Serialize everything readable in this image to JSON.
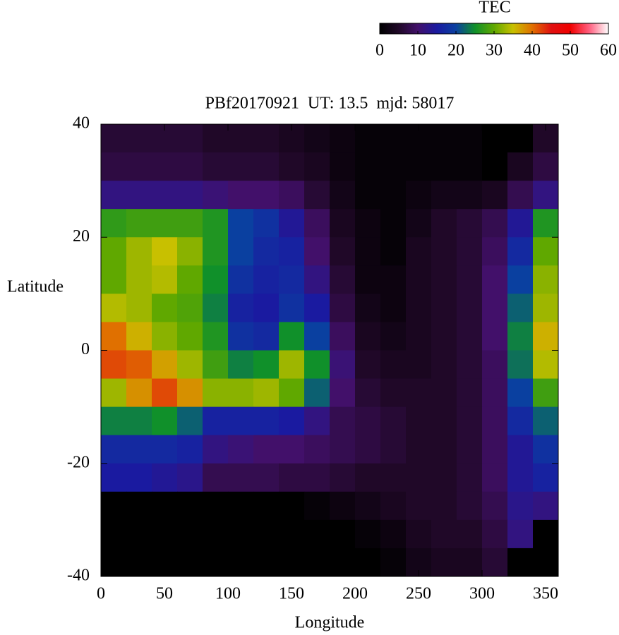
{
  "chart_data": {
    "type": "heatmap",
    "title": "PBf20170921  UT: 13.5  mjd: 58017",
    "xlabel": "Longitude",
    "ylabel": "Latitude",
    "colorbar_label": "TEC",
    "x": [
      10,
      30,
      50,
      70,
      90,
      110,
      130,
      150,
      170,
      190,
      210,
      230,
      250,
      270,
      290,
      310,
      330,
      350
    ],
    "y": [
      37.5,
      32.5,
      27.5,
      22.5,
      17.5,
      12.5,
      7.5,
      2.5,
      -2.5,
      -7.5,
      -12.5,
      -17.5,
      -22.5,
      -27.5,
      -32.5,
      -37.5
    ],
    "z": [
      [
        6,
        6,
        6,
        6,
        5,
        5,
        5,
        4,
        3,
        2,
        1,
        1,
        1,
        1,
        1,
        0,
        0,
        5
      ],
      [
        7,
        7,
        7,
        7,
        6,
        6,
        6,
        5,
        4,
        2,
        1,
        1,
        1,
        1,
        1,
        0,
        4,
        7
      ],
      [
        12,
        12,
        12,
        12,
        11,
        10,
        10,
        9,
        6,
        3,
        1,
        1,
        2,
        3,
        3,
        4,
        8,
        12
      ],
      [
        27,
        28,
        28,
        28,
        26,
        20,
        18,
        14,
        9,
        4,
        2,
        1,
        3,
        5,
        6,
        8,
        14,
        26
      ],
      [
        30,
        33,
        35,
        32,
        26,
        20,
        17,
        16,
        10,
        5,
        2,
        1,
        4,
        5,
        6,
        9,
        17,
        30
      ],
      [
        30,
        33,
        34,
        30,
        25,
        18,
        16,
        17,
        12,
        6,
        2,
        2,
        4,
        5,
        6,
        10,
        20,
        32
      ],
      [
        34,
        33,
        30,
        29,
        24,
        16,
        15,
        18,
        15,
        7,
        3,
        2,
        4,
        5,
        6,
        10,
        22,
        33
      ],
      [
        40,
        36,
        32,
        30,
        26,
        18,
        17,
        25,
        20,
        9,
        4,
        3,
        4,
        5,
        6,
        10,
        24,
        36
      ],
      [
        42,
        41,
        37,
        33,
        28,
        24,
        25,
        33,
        25,
        11,
        5,
        4,
        4,
        5,
        6,
        9,
        23,
        34
      ],
      [
        33,
        38,
        42,
        38,
        32,
        32,
        33,
        30,
        22,
        10,
        6,
        5,
        5,
        5,
        6,
        9,
        20,
        28
      ],
      [
        24,
        24,
        25,
        22,
        16,
        16,
        16,
        15,
        12,
        8,
        7,
        6,
        5,
        5,
        6,
        9,
        17,
        22
      ],
      [
        17,
        17,
        17,
        16,
        12,
        11,
        10,
        10,
        9,
        8,
        7,
        6,
        5,
        5,
        6,
        9,
        14,
        18
      ],
      [
        15,
        15,
        14,
        13,
        8,
        8,
        8,
        7,
        7,
        6,
        5,
        5,
        5,
        5,
        6,
        9,
        14,
        16
      ],
      [
        0,
        0,
        0,
        0,
        0,
        0,
        0,
        0,
        1,
        2,
        3,
        4,
        5,
        5,
        6,
        8,
        13,
        12
      ],
      [
        0,
        0,
        0,
        0,
        0,
        0,
        0,
        0,
        0,
        0,
        1,
        2,
        4,
        5,
        5,
        7,
        12,
        0
      ],
      [
        0,
        0,
        0,
        0,
        0,
        0,
        0,
        0,
        0,
        0,
        0,
        1,
        3,
        4,
        4,
        6,
        0,
        0
      ]
    ],
    "xlim": [
      0,
      360
    ],
    "xticks": [
      0,
      50,
      100,
      150,
      200,
      250,
      300,
      350
    ],
    "ylim": [
      -40,
      40
    ],
    "yticks": [
      -40,
      -20,
      0,
      20,
      40
    ],
    "zlim": [
      0,
      60
    ],
    "zticks": [
      0,
      10,
      20,
      30,
      40,
      50,
      60
    ],
    "colormap": [
      "#000000",
      "#200828",
      "#42106a",
      "#1a1aa0",
      "#0a40a0",
      "#10902a",
      "#60a800",
      "#c8c000",
      "#e07000",
      "#e01010",
      "#f00000",
      "#ff6080",
      "#ffffff"
    ]
  }
}
